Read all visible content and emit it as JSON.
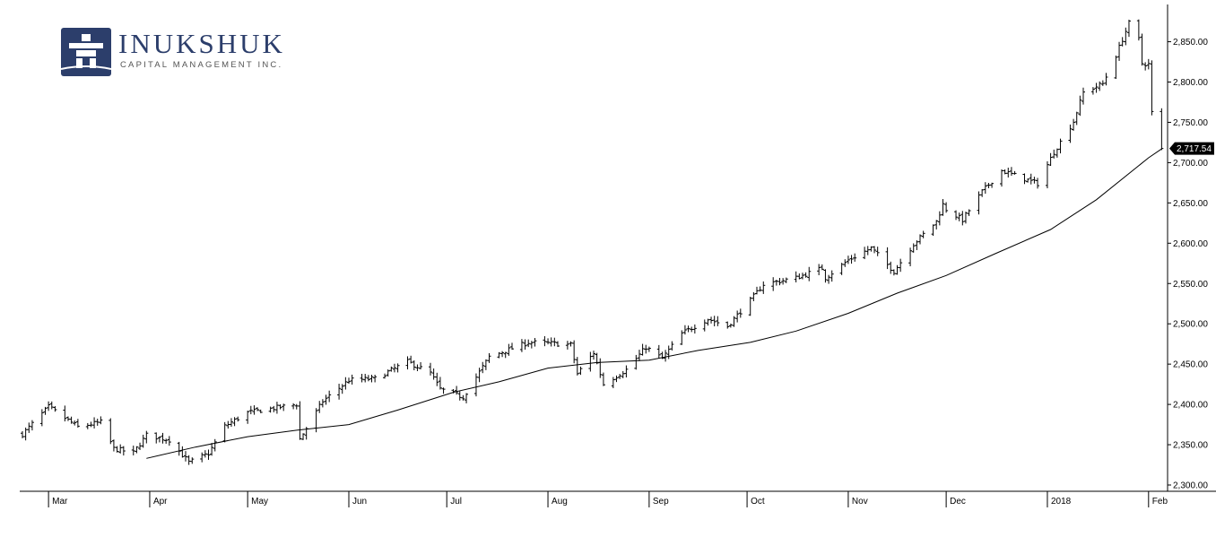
{
  "logo": {
    "title": "INUKSHUK",
    "subtitle": "CAPITAL MANAGEMENT INC.",
    "icon": "inukshuk-icon",
    "color": "#2c3e6b"
  },
  "chart_data": {
    "type": "ohlc-bar-with-moving-average",
    "title": "",
    "xlabel": "",
    "ylabel": "",
    "ylim": [
      2290,
      2890
    ],
    "y_ticks": [
      "2,300.00",
      "2,350.00",
      "2,400.00",
      "2,450.00",
      "2,500.00",
      "2,550.00",
      "2,600.00",
      "2,650.00",
      "2,700.00",
      "2,750.00",
      "2,800.00",
      "2,850.00"
    ],
    "y_tick_values": [
      2300,
      2350,
      2400,
      2450,
      2500,
      2550,
      2600,
      2650,
      2700,
      2750,
      2800,
      2850
    ],
    "x_ticks": [
      "Mar",
      "Apr",
      "May",
      "Jun",
      "Jul",
      "Aug",
      "Sep",
      "Oct",
      "Nov",
      "Dec",
      "2018",
      "Feb"
    ],
    "x_tick_dates": [
      "2017-03-01",
      "2017-04-01",
      "2017-05-01",
      "2017-06-01",
      "2017-07-01",
      "2017-08-01",
      "2017-09-01",
      "2017-10-01",
      "2017-11-01",
      "2017-12-01",
      "2018-01-01",
      "2018-02-01"
    ],
    "x_start": "2017-02-21",
    "x_end": "2018-03-12",
    "last_price_label": "2,717.54",
    "last_price": 2717.54,
    "grid": false,
    "series": [
      {
        "kind": "price",
        "points": [
          [
            "2017-02-21",
            2363
          ],
          [
            "2017-03-01",
            2397
          ],
          [
            "2017-03-10",
            2372
          ],
          [
            "2017-03-17",
            2378
          ],
          [
            "2017-03-21",
            2345
          ],
          [
            "2017-03-27",
            2340
          ],
          [
            "2017-03-31",
            2362
          ],
          [
            "2017-04-07",
            2356
          ],
          [
            "2017-04-13",
            2328
          ],
          [
            "2017-04-19",
            2339
          ],
          [
            "2017-04-24",
            2373
          ],
          [
            "2017-05-01",
            2390
          ],
          [
            "2017-05-10",
            2396
          ],
          [
            "2017-05-16",
            2400
          ],
          [
            "2017-05-17",
            2357
          ],
          [
            "2017-05-24",
            2404
          ],
          [
            "2017-06-01",
            2430
          ],
          [
            "2017-06-09",
            2432
          ],
          [
            "2017-06-19",
            2453
          ],
          [
            "2017-06-26",
            2439
          ],
          [
            "2017-06-29",
            2419
          ],
          [
            "2017-07-06",
            2409
          ],
          [
            "2017-07-14",
            2459
          ],
          [
            "2017-07-26",
            2477
          ],
          [
            "2017-08-01",
            2476
          ],
          [
            "2017-08-08",
            2474
          ],
          [
            "2017-08-10",
            2438
          ],
          [
            "2017-08-15",
            2464
          ],
          [
            "2017-08-18",
            2425
          ],
          [
            "2017-08-25",
            2443
          ],
          [
            "2017-08-31",
            2471
          ],
          [
            "2017-09-05",
            2457
          ],
          [
            "2017-09-11",
            2488
          ],
          [
            "2017-09-19",
            2506
          ],
          [
            "2017-09-25",
            2497
          ],
          [
            "2017-10-02",
            2529
          ],
          [
            "2017-10-06",
            2549
          ],
          [
            "2017-10-16",
            2557
          ],
          [
            "2017-10-24",
            2569
          ],
          [
            "2017-10-25",
            2557
          ],
          [
            "2017-11-01",
            2579
          ],
          [
            "2017-11-08",
            2594
          ],
          [
            "2017-11-15",
            2565
          ],
          [
            "2017-11-21",
            2599
          ],
          [
            "2017-11-28",
            2627
          ],
          [
            "2017-11-30",
            2648
          ],
          [
            "2017-12-01",
            2642
          ],
          [
            "2017-12-06",
            2629
          ],
          [
            "2017-12-12",
            2664
          ],
          [
            "2017-12-18",
            2690
          ],
          [
            "2017-12-29",
            2674
          ],
          [
            "2018-01-03",
            2713
          ],
          [
            "2018-01-09",
            2751
          ],
          [
            "2018-01-12",
            2787
          ],
          [
            "2018-01-18",
            2798
          ],
          [
            "2018-01-22",
            2833
          ],
          [
            "2018-01-26",
            2873
          ],
          [
            "2018-01-29",
            2853
          ],
          [
            "2018-01-30",
            2823
          ],
          [
            "2018-02-01",
            2822
          ],
          [
            "2018-02-02",
            2762
          ],
          [
            "2018-02-05",
            2717.54
          ]
        ]
      },
      {
        "kind": "moving-average",
        "points": [
          [
            "2017-03-31",
            2333
          ],
          [
            "2017-04-15",
            2347
          ],
          [
            "2017-05-01",
            2360
          ],
          [
            "2017-05-16",
            2368
          ],
          [
            "2017-06-01",
            2375
          ],
          [
            "2017-06-16",
            2393
          ],
          [
            "2017-07-03",
            2415
          ],
          [
            "2017-07-17",
            2428
          ],
          [
            "2017-08-01",
            2445
          ],
          [
            "2017-08-16",
            2452
          ],
          [
            "2017-09-01",
            2455
          ],
          [
            "2017-09-16",
            2467
          ],
          [
            "2017-10-02",
            2477
          ],
          [
            "2017-10-16",
            2491
          ],
          [
            "2017-11-01",
            2513
          ],
          [
            "2017-11-16",
            2538
          ],
          [
            "2017-12-01",
            2560
          ],
          [
            "2017-12-16",
            2587
          ],
          [
            "2018-01-02",
            2617
          ],
          [
            "2018-01-16",
            2654
          ],
          [
            "2018-02-01",
            2706
          ],
          [
            "2018-02-05",
            2717
          ]
        ]
      }
    ]
  }
}
